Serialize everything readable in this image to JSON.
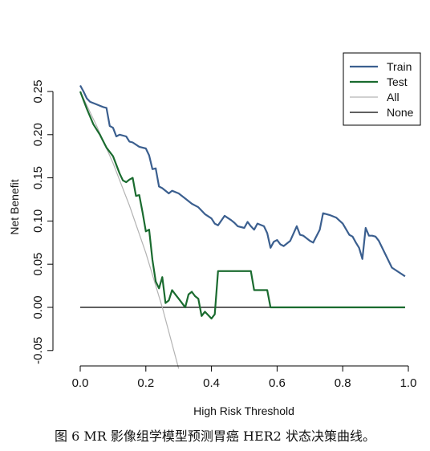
{
  "caption": "图 6 MR 影像组学模型预测胃癌 HER2 状态决策曲线。",
  "chart_data": {
    "type": "line",
    "xlabel": "High Risk Threshold",
    "ylabel": "Net Benefit",
    "xlim": [
      0,
      1
    ],
    "ylim": [
      -0.06,
      0.27
    ],
    "xticks": [
      0.0,
      0.2,
      0.4,
      0.6,
      0.8,
      1.0
    ],
    "xtick_labels": [
      "0.0",
      "0.2",
      "0.4",
      "0.6",
      "0.8",
      "1.0"
    ],
    "yticks": [
      -0.05,
      0.0,
      0.05,
      0.1,
      0.15,
      0.2,
      0.25
    ],
    "ytick_labels": [
      "-0.05",
      "0.00",
      "0.05",
      "0.10",
      "0.15",
      "0.20",
      "0.25"
    ],
    "legend_position": "top-right",
    "series": [
      {
        "name": "Train",
        "color": "#3b5f8f",
        "x": [
          0.0,
          0.01,
          0.02,
          0.03,
          0.05,
          0.07,
          0.08,
          0.09,
          0.1,
          0.11,
          0.12,
          0.14,
          0.15,
          0.16,
          0.18,
          0.2,
          0.21,
          0.22,
          0.23,
          0.24,
          0.25,
          0.27,
          0.28,
          0.3,
          0.32,
          0.34,
          0.36,
          0.38,
          0.4,
          0.41,
          0.42,
          0.44,
          0.46,
          0.47,
          0.48,
          0.5,
          0.51,
          0.52,
          0.53,
          0.54,
          0.56,
          0.57,
          0.58,
          0.59,
          0.6,
          0.61,
          0.62,
          0.64,
          0.66,
          0.67,
          0.68,
          0.7,
          0.71,
          0.73,
          0.74,
          0.76,
          0.78,
          0.8,
          0.82,
          0.83,
          0.84,
          0.85,
          0.86,
          0.87,
          0.88,
          0.89,
          0.9,
          0.91,
          0.95,
          0.99
        ],
        "y": [
          0.257,
          0.25,
          0.242,
          0.238,
          0.235,
          0.232,
          0.231,
          0.21,
          0.208,
          0.198,
          0.2,
          0.198,
          0.192,
          0.191,
          0.186,
          0.184,
          0.176,
          0.16,
          0.161,
          0.14,
          0.138,
          0.132,
          0.135,
          0.132,
          0.126,
          0.12,
          0.116,
          0.108,
          0.103,
          0.097,
          0.095,
          0.106,
          0.101,
          0.098,
          0.094,
          0.092,
          0.099,
          0.094,
          0.09,
          0.097,
          0.094,
          0.086,
          0.069,
          0.076,
          0.078,
          0.073,
          0.071,
          0.077,
          0.094,
          0.084,
          0.083,
          0.077,
          0.075,
          0.09,
          0.109,
          0.107,
          0.104,
          0.097,
          0.084,
          0.082,
          0.075,
          0.069,
          0.056,
          0.092,
          0.083,
          0.083,
          0.082,
          0.077,
          0.046,
          0.036
        ]
      },
      {
        "name": "Test",
        "color": "#1a6b2f",
        "x": [
          0.0,
          0.02,
          0.04,
          0.06,
          0.08,
          0.1,
          0.12,
          0.13,
          0.14,
          0.15,
          0.16,
          0.17,
          0.18,
          0.19,
          0.2,
          0.21,
          0.22,
          0.23,
          0.24,
          0.25,
          0.26,
          0.27,
          0.28,
          0.29,
          0.3,
          0.31,
          0.32,
          0.33,
          0.34,
          0.35,
          0.36,
          0.37,
          0.38,
          0.4,
          0.41,
          0.42,
          0.44,
          0.46,
          0.48,
          0.5,
          0.52,
          0.53,
          0.55,
          0.57,
          0.58,
          0.6,
          0.7,
          0.8,
          0.9,
          0.95,
          0.99
        ],
        "y": [
          0.25,
          0.23,
          0.212,
          0.2,
          0.185,
          0.175,
          0.155,
          0.147,
          0.145,
          0.148,
          0.15,
          0.129,
          0.13,
          0.11,
          0.088,
          0.09,
          0.055,
          0.03,
          0.022,
          0.035,
          0.005,
          0.008,
          0.02,
          0.015,
          0.01,
          0.005,
          0.0,
          0.015,
          0.018,
          0.013,
          0.01,
          -0.01,
          -0.005,
          -0.013,
          -0.008,
          0.042,
          0.042,
          0.042,
          0.042,
          0.042,
          0.042,
          0.02,
          0.02,
          0.02,
          0.0,
          0.0,
          0.0,
          0.0,
          0.0,
          0.0,
          0.0
        ]
      },
      {
        "name": "All",
        "color": "#b3b3b3",
        "x": [
          0.0,
          0.05,
          0.1,
          0.15,
          0.2,
          0.25,
          0.3
        ],
        "y": [
          0.25,
          0.21,
          0.167,
          0.118,
          0.063,
          0.0,
          -0.071
        ]
      },
      {
        "name": "None",
        "color": "#000000",
        "x": [
          0.0,
          0.99
        ],
        "y": [
          0.0,
          0.0
        ]
      }
    ]
  }
}
